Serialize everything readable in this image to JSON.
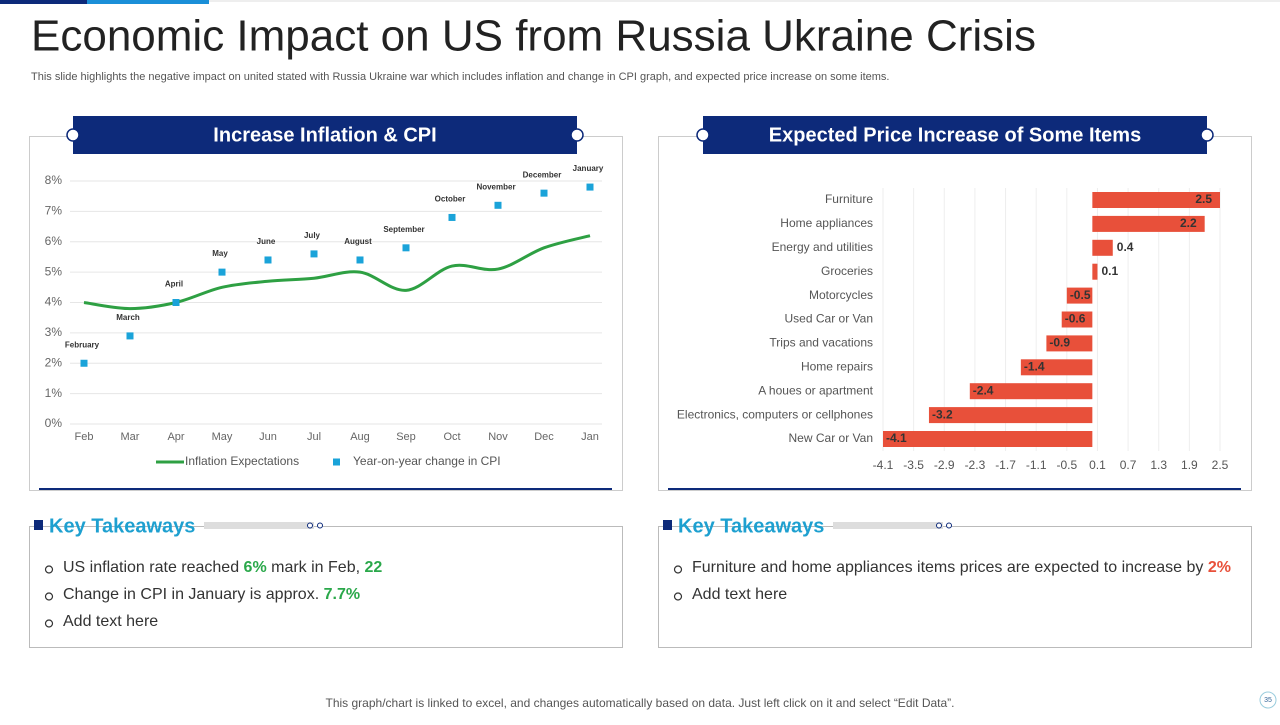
{
  "title": "Economic Impact on US from Russia Ukraine Crisis",
  "subtitle": "This slide highlights the negative impact on united stated with Russia Ukraine war which includes inflation and change in CPI graph, and expected price increase on some items.",
  "chart_data": [
    {
      "type": "line",
      "title": "Increase Inflation  & CPI",
      "categories": [
        "Feb",
        "Mar",
        "Apr",
        "May",
        "Jun",
        "Jul",
        "Aug",
        "Sep",
        "Oct",
        "Nov",
        "Dec",
        "Jan"
      ],
      "series": [
        {
          "name": "Inflation Expectations",
          "type": "line",
          "color": "#2ea043",
          "values": [
            4.0,
            3.8,
            4.0,
            4.5,
            4.7,
            4.8,
            5.0,
            4.4,
            5.2,
            5.1,
            5.8,
            6.2
          ]
        },
        {
          "name": "Year-on-year change in CPI",
          "type": "scatter",
          "color": "#1aa3d9",
          "values": [
            2.0,
            2.9,
            4.0,
            5.0,
            5.4,
            5.6,
            5.4,
            5.8,
            6.8,
            7.2,
            7.6,
            7.8
          ],
          "point_labels": [
            "February",
            "March",
            "April",
            "May",
            "June",
            "July",
            "August",
            "September",
            "October",
            "November",
            "December",
            "January"
          ]
        }
      ],
      "ylim": [
        0,
        8
      ],
      "yticks": [
        {
          "value": 0,
          "label": "0%"
        },
        {
          "value": 1,
          "label": "1%"
        },
        {
          "value": 2,
          "label": "2%"
        },
        {
          "value": 3,
          "label": "3%"
        },
        {
          "value": 4,
          "label": "4%"
        },
        {
          "value": 5,
          "label": "5%"
        },
        {
          "value": 6,
          "label": "6%"
        },
        {
          "value": 7,
          "label": "7%"
        },
        {
          "value": 8,
          "label": "8%"
        }
      ],
      "grid": true
    },
    {
      "type": "hbar",
      "title": "Expected Price Increase of Some Items",
      "categories": [
        "Furniture",
        "Home appliances",
        "Energy and utilities",
        "Groceries",
        "Motorcycles",
        "Used Car or Van",
        "Trips and vacations",
        "Home repairs",
        "A houes or apartment",
        "Electronics, computers or cellphones",
        "New Car or Van"
      ],
      "values": [
        2.5,
        2.2,
        0.4,
        0.1,
        -0.5,
        -0.6,
        -0.9,
        -1.4,
        -2.4,
        -3.2,
        -4.1
      ],
      "color": "#e8503a",
      "xlim": [
        -4.1,
        2.5
      ],
      "xticks": [
        -4.1,
        -3.5,
        -2.9,
        -2.3,
        -1.7,
        -1.1,
        -0.5,
        0.1,
        0.7,
        1.3,
        1.9,
        2.5
      ],
      "grid": true
    }
  ],
  "takeaways": [
    {
      "heading": "Key Takeaways",
      "items": [
        [
          "US inflation rate reached ",
          {
            "text": "6%",
            "color": "#2aa84a"
          },
          " mark in Feb, ",
          {
            "text": "22",
            "color": "#2aa84a"
          }
        ],
        [
          "Change in CPI in January is approx. ",
          {
            "text": "7.7%",
            "color": "#2aa84a"
          }
        ],
        [
          "Add text here"
        ]
      ]
    },
    {
      "heading": "Key Takeaways",
      "items": [
        [
          "Furniture and home appliances items prices are expected to increase by ",
          {
            "text": "2%",
            "color": "#e8503a"
          }
        ],
        [
          "Add text here"
        ]
      ]
    }
  ],
  "footer": "This graph/chart is linked to excel,  and changes automatically based on data. Just left click on it and select “Edit Data”.",
  "page_number": "35"
}
